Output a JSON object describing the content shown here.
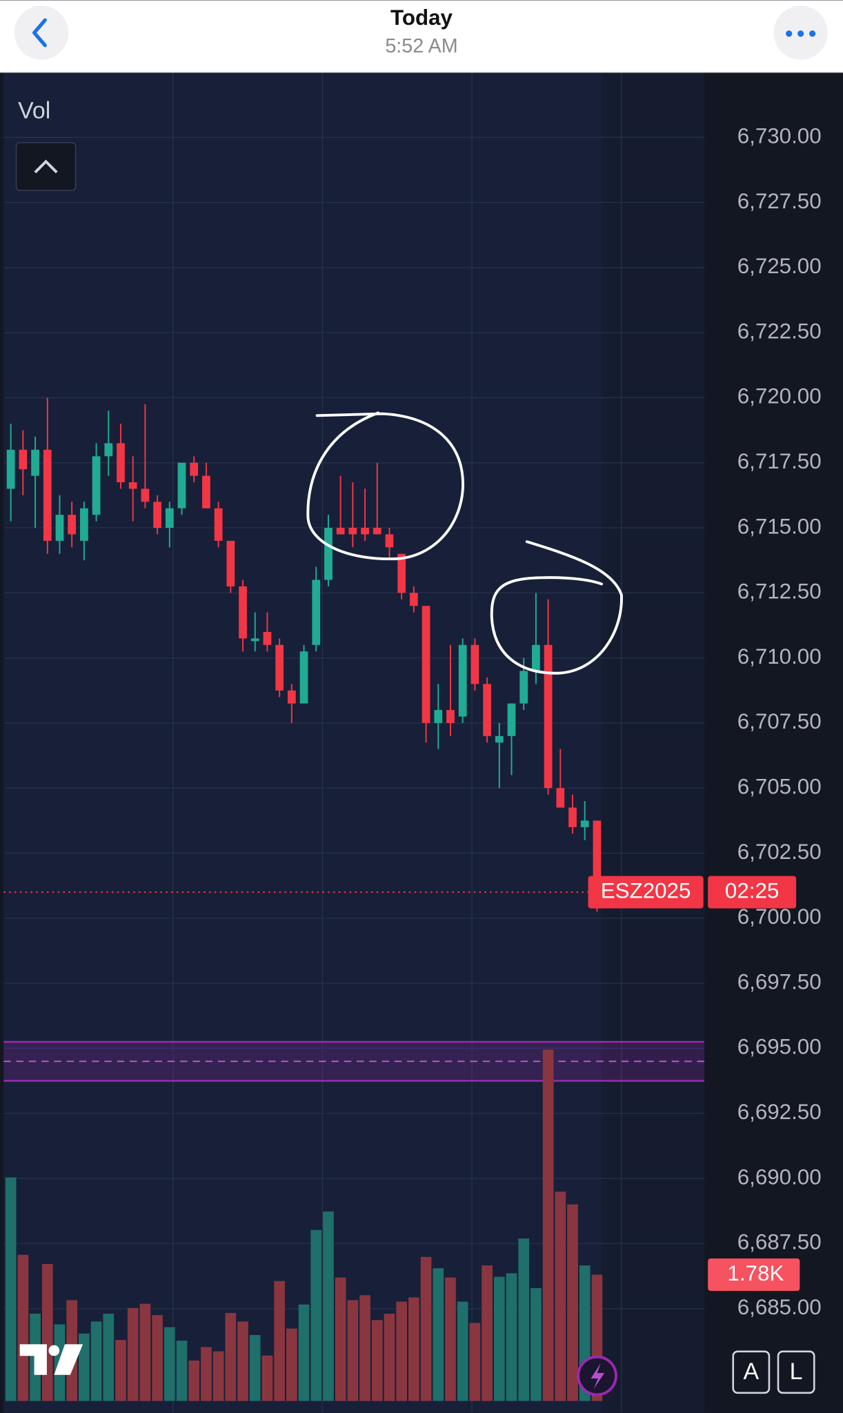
{
  "header": {
    "title": "Today",
    "subtitle": "5:52 AM"
  },
  "buttons": [
    "A",
    "L"
  ],
  "chart_data": {
    "type": "candlestick",
    "symbol": "ESZ2025",
    "countdown": "02:25",
    "volume_title": "Vol",
    "up_color": "#22ab94",
    "down_color": "#f23645",
    "volume_up_color": "#1f6f6b",
    "volume_down_color": "#8a3640",
    "zone": {
      "top": 6695.25,
      "mid": 6694.5,
      "bottom": 6693.75,
      "color": "#9c27b0"
    },
    "open": [
      6716.5,
      6718,
      6717,
      6718,
      6714.5,
      6715.5,
      6714.5,
      6715.5,
      6717.75,
      6718.25,
      6716.75,
      6716.5,
      6716,
      6715,
      6715.75,
      6717.5,
      6717,
      6715.75,
      6714.5,
      6712.75,
      6710.75,
      6711,
      6710.5,
      6708.75,
      6708.25,
      6710.5,
      6713,
      6715,
      6715,
      6715,
      6715,
      6714.75,
      6714,
      6712.5,
      6712,
      6707.5,
      6708,
      6707.75,
      6710.5,
      6709,
      6706.75,
      6707,
      6708.25,
      6709.5,
      6710.5,
      6705,
      6704.25,
      6703.5,
      6703.75
    ],
    "high": [
      6719,
      6718.75,
      6718.5,
      6720,
      6716.25,
      6716,
      6716,
      6718.25,
      6719.5,
      6719,
      6717.75,
      6719.75,
      6716.25,
      6716,
      6717.5,
      6717.75,
      6717.5,
      6716,
      6714.5,
      6713,
      6711.75,
      6711.75,
      6710.75,
      6709,
      6710.5,
      6713.5,
      6715.5,
      6717,
      6716.75,
      6716.5,
      6717.5,
      6715,
      6714,
      6712.75,
      6712,
      6709,
      6710.5,
      6710.75,
      6710.75,
      6709.25,
      6707.5,
      6708.25,
      6710,
      6712.5,
      6712.25,
      6706.5,
      6704.75,
      6704.5,
      6703.75
    ],
    "low": [
      6715.25,
      6716.25,
      6715,
      6714,
      6714,
      6714.25,
      6713.75,
      6715.25,
      6717,
      6716.5,
      6715.25,
      6715.75,
      6714.75,
      6714.25,
      6715.5,
      6716.75,
      6715.75,
      6714.25,
      6712.5,
      6710.25,
      6710.25,
      6710.25,
      6708.5,
      6707.5,
      6708.25,
      6710.25,
      6712.75,
      6714.75,
      6714.25,
      6714.5,
      6714.75,
      6713.75,
      6712.25,
      6711.75,
      6706.75,
      6706.5,
      6707,
      6707.5,
      6708.75,
      6706.75,
      6705,
      6705.5,
      6708,
      6709,
      6704.75,
      6704.25,
      6703.25,
      6703,
      6700.25
    ],
    "close": [
      6718,
      6717.25,
      6718,
      6714.5,
      6715.5,
      6714.75,
      6715.75,
      6717.75,
      6718.25,
      6716.75,
      6716.5,
      6716,
      6715,
      6715.75,
      6717.5,
      6717,
      6715.75,
      6714.5,
      6712.75,
      6710.75,
      6710.75,
      6710.5,
      6708.75,
      6708.25,
      6710.25,
      6713,
      6715,
      6714.75,
      6714.75,
      6714.75,
      6714.75,
      6714.25,
      6712.5,
      6712,
      6707.5,
      6708,
      6707.5,
      6710.5,
      6709,
      6707,
      6707,
      6708.25,
      6709.5,
      6710.5,
      6705,
      6704.25,
      6703.5,
      6703.75,
      6701
    ],
    "volume": [
      3150,
      2060,
      1230,
      1930,
      1080,
      1420,
      950,
      1120,
      1230,
      860,
      1310,
      1370,
      1210,
      1040,
      850,
      570,
      760,
      700,
      1240,
      1120,
      930,
      640,
      1690,
      1020,
      1360,
      2410,
      2670,
      1740,
      1420,
      1490,
      1140,
      1230,
      1400,
      1460,
      2030,
      1870,
      1740,
      1400,
      1100,
      1910,
      1750,
      1800,
      2290,
      1590,
      4950,
      2950,
      2770,
      1910,
      1780
    ],
    "last_volume_label": "1.78K",
    "ylim": [
      6681,
      6732.5
    ],
    "yticks": [
      {
        "value": 6685,
        "label": "6,685.00"
      },
      {
        "value": 6687.5,
        "label": "6,687.50"
      },
      {
        "value": 6690,
        "label": "6,690.00"
      },
      {
        "value": 6692.5,
        "label": "6,692.50"
      },
      {
        "value": 6695,
        "label": "6,695.00"
      },
      {
        "value": 6697.5,
        "label": "6,697.50"
      },
      {
        "value": 6700,
        "label": "6,700.00"
      },
      {
        "value": 6702.5,
        "label": "6,702.50"
      },
      {
        "value": 6705,
        "label": "6,705.00"
      },
      {
        "value": 6707.5,
        "label": "6,707.50"
      },
      {
        "value": 6710,
        "label": "6,710.00"
      },
      {
        "value": 6712.5,
        "label": "6,712.50"
      },
      {
        "value": 6715,
        "label": "6,715.00"
      },
      {
        "value": 6717.5,
        "label": "6,717.50"
      },
      {
        "value": 6720,
        "label": "6,720.00"
      },
      {
        "value": 6722.5,
        "label": "6,722.50"
      },
      {
        "value": 6725,
        "label": "6,725.00"
      },
      {
        "value": 6727.5,
        "label": "6,727.50"
      },
      {
        "value": 6730,
        "label": "6,730.00"
      }
    ],
    "grid": true
  }
}
